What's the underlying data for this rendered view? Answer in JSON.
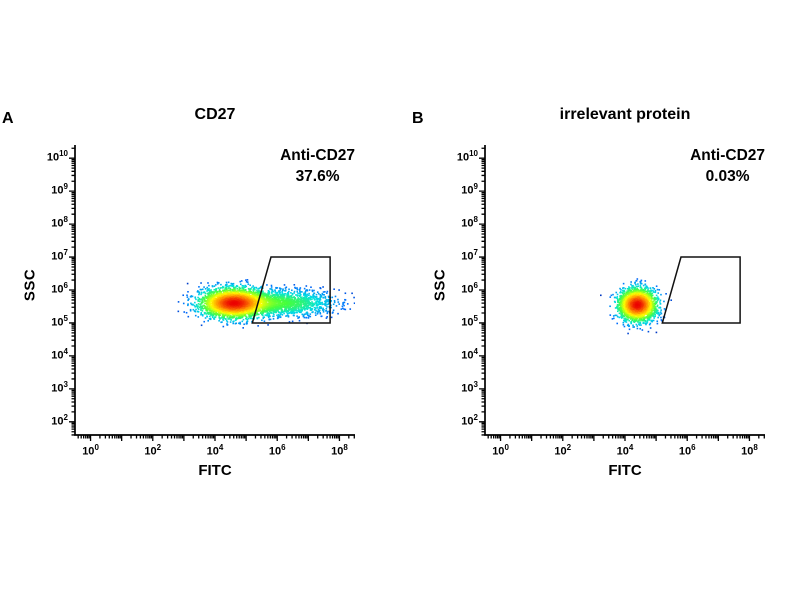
{
  "figure": {
    "background": "#ffffff",
    "axis_color": "#000000",
    "gate_color": "#111111",
    "tick_base": "10"
  },
  "chart_data": [
    {
      "type": "scatter",
      "subtype": "flow-cytometry-density",
      "panel_label": "A",
      "title": "CD27",
      "annotation": {
        "line1": "Anti-CD27",
        "line2": "37.6%"
      },
      "gate_percent": 37.6,
      "xlabel": "FITC",
      "ylabel": "SSC",
      "x_scale": "log",
      "y_scale": "log",
      "x_range_log": [
        -0.5,
        8.5
      ],
      "y_range_log": [
        1.6,
        10.4
      ],
      "x_tick_exponents": [
        0,
        2,
        4,
        6,
        8
      ],
      "y_tick_exponents": [
        2,
        3,
        4,
        5,
        6,
        7,
        8,
        9,
        10
      ],
      "x_tick_labels": [
        "10^0",
        "10^2",
        "10^4",
        "10^6",
        "10^8"
      ],
      "y_tick_labels": [
        "10^2",
        "10^3",
        "10^4",
        "10^5",
        "10^6",
        "10^7",
        "10^8",
        "10^9",
        "10^10"
      ],
      "gate_polygon_log": [
        [
          5.2,
          5.0
        ],
        [
          5.8,
          7.0
        ],
        [
          7.7,
          7.0
        ],
        [
          7.7,
          5.0
        ]
      ],
      "populations": [
        {
          "name": "main-lymphocyte-cluster",
          "n": 3200,
          "cx": 4.6,
          "cy": 5.6,
          "sx": 0.52,
          "sy": 0.22,
          "w": 1.0
        },
        {
          "name": "fitc-positive-tail",
          "n": 1700,
          "cx": 6.1,
          "cy": 5.6,
          "sx": 0.85,
          "sy": 0.2,
          "w": 0.25
        }
      ],
      "point_color_map": "jet",
      "seed": 42
    },
    {
      "type": "scatter",
      "subtype": "flow-cytometry-density",
      "panel_label": "B",
      "title": "irrelevant protein",
      "annotation": {
        "line1": "Anti-CD27",
        "line2": "0.03%"
      },
      "gate_percent": 0.03,
      "xlabel": "FITC",
      "ylabel": "SSC",
      "x_scale": "log",
      "y_scale": "log",
      "x_range_log": [
        -0.5,
        8.5
      ],
      "y_range_log": [
        1.6,
        10.4
      ],
      "x_tick_exponents": [
        0,
        2,
        4,
        6,
        8
      ],
      "y_tick_exponents": [
        2,
        3,
        4,
        5,
        6,
        7,
        8,
        9,
        10
      ],
      "x_tick_labels": [
        "10^0",
        "10^2",
        "10^4",
        "10^6",
        "10^8"
      ],
      "y_tick_labels": [
        "10^2",
        "10^3",
        "10^4",
        "10^5",
        "10^6",
        "10^7",
        "10^8",
        "10^9",
        "10^10"
      ],
      "gate_polygon_log": [
        [
          5.2,
          5.0
        ],
        [
          5.8,
          7.0
        ],
        [
          7.7,
          7.0
        ],
        [
          7.7,
          5.0
        ]
      ],
      "populations": [
        {
          "name": "negative-cluster",
          "n": 2600,
          "cx": 4.4,
          "cy": 5.55,
          "sx": 0.3,
          "sy": 0.24,
          "w": 1.0
        }
      ],
      "point_color_map": "jet",
      "seed": 7
    }
  ]
}
